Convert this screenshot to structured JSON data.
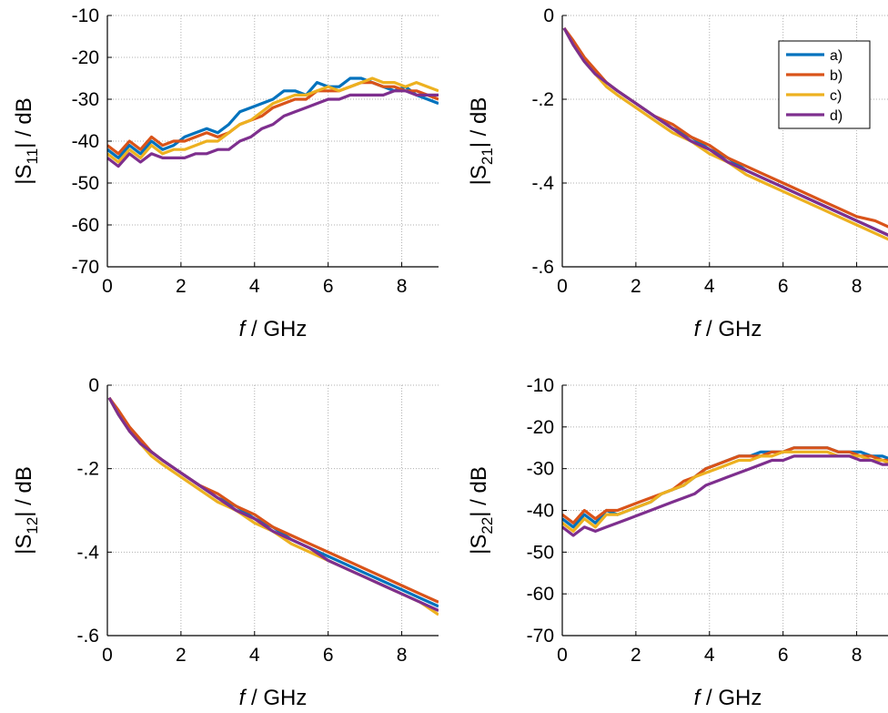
{
  "chart_data": [
    {
      "type": "line",
      "xlabel_var": "f",
      "xlabel_rest": " / GHz",
      "ylabel_pre": "|S",
      "ylabel_sub": "11",
      "ylabel_post": "| / dB",
      "xlim": [
        0,
        9
      ],
      "ylim": [
        -70,
        -10
      ],
      "xticks": [
        0,
        2,
        4,
        6,
        8
      ],
      "yticks": [
        -70,
        -60,
        -50,
        -40,
        -30,
        -20,
        -10
      ],
      "grid": true,
      "legend": null,
      "series": [
        {
          "color": "#0072BD",
          "x": [
            0,
            0.3,
            0.6,
            0.9,
            1.2,
            1.5,
            1.8,
            2.1,
            2.4,
            2.7,
            3.0,
            3.3,
            3.6,
            3.9,
            4.2,
            4.5,
            4.8,
            5.1,
            5.4,
            5.7,
            6.0,
            6.3,
            6.6,
            6.9,
            7.2,
            7.5,
            7.8,
            8.1,
            8.4,
            8.7,
            9.0
          ],
          "y": [
            -42,
            -44,
            -41,
            -43,
            -40,
            -42,
            -41,
            -39,
            -38,
            -37,
            -38,
            -36,
            -33,
            -32,
            -31,
            -30,
            -28,
            -28,
            -29,
            -26,
            -27,
            -27,
            -25,
            -25,
            -26,
            -27,
            -28,
            -27,
            -29,
            -30,
            -31
          ]
        },
        {
          "color": "#D95319",
          "x": [
            0,
            0.3,
            0.6,
            0.9,
            1.2,
            1.5,
            1.8,
            2.1,
            2.4,
            2.7,
            3.0,
            3.3,
            3.6,
            3.9,
            4.2,
            4.5,
            4.8,
            5.1,
            5.4,
            5.7,
            6.0,
            6.3,
            6.6,
            6.9,
            7.2,
            7.5,
            7.8,
            8.1,
            8.4,
            8.7,
            9.0
          ],
          "y": [
            -41,
            -43,
            -40,
            -42,
            -39,
            -41,
            -40,
            -40,
            -39,
            -38,
            -39,
            -38,
            -36,
            -35,
            -34,
            -32,
            -31,
            -30,
            -30,
            -28,
            -28,
            -28,
            -27,
            -26,
            -26,
            -27,
            -27,
            -28,
            -28,
            -29,
            -30
          ]
        },
        {
          "color": "#EDB120",
          "x": [
            0,
            0.3,
            0.6,
            0.9,
            1.2,
            1.5,
            1.8,
            2.1,
            2.4,
            2.7,
            3.0,
            3.3,
            3.6,
            3.9,
            4.2,
            4.5,
            4.8,
            5.1,
            5.4,
            5.7,
            6.0,
            6.3,
            6.6,
            6.9,
            7.2,
            7.5,
            7.8,
            8.1,
            8.4,
            8.7,
            9.0
          ],
          "y": [
            -43,
            -45,
            -42,
            -44,
            -41,
            -43,
            -42,
            -42,
            -41,
            -40,
            -40,
            -38,
            -36,
            -35,
            -33,
            -31,
            -30,
            -29,
            -29,
            -28,
            -27,
            -28,
            -27,
            -26,
            -25,
            -26,
            -26,
            -27,
            -26,
            -27,
            -28
          ]
        },
        {
          "color": "#7E2F8E",
          "x": [
            0,
            0.3,
            0.6,
            0.9,
            1.2,
            1.5,
            1.8,
            2.1,
            2.4,
            2.7,
            3.0,
            3.3,
            3.6,
            3.9,
            4.2,
            4.5,
            4.8,
            5.1,
            5.4,
            5.7,
            6.0,
            6.3,
            6.6,
            6.9,
            7.2,
            7.5,
            7.8,
            8.1,
            8.4,
            8.7,
            9.0
          ],
          "y": [
            -44,
            -46,
            -43,
            -45,
            -43,
            -44,
            -44,
            -44,
            -43,
            -43,
            -42,
            -42,
            -40,
            -39,
            -37,
            -36,
            -34,
            -33,
            -32,
            -31,
            -30,
            -30,
            -29,
            -29,
            -29,
            -29,
            -28,
            -28,
            -29,
            -29,
            -29
          ]
        }
      ]
    },
    {
      "type": "line",
      "xlabel_var": "f",
      "xlabel_rest": " / GHz",
      "ylabel_pre": "|S",
      "ylabel_sub": "21",
      "ylabel_post": "| / dB",
      "xlim": [
        0,
        9
      ],
      "ylim": [
        -0.6,
        0
      ],
      "xticks": [
        0,
        2,
        4,
        6,
        8
      ],
      "yticks": [
        -0.6,
        -0.4,
        -0.2,
        0
      ],
      "grid": true,
      "legend": {
        "position": "top-right",
        "entries": [
          "a)",
          "b)",
          "c)",
          "d)"
        ]
      },
      "series": [
        {
          "name": "a)",
          "color": "#0072BD",
          "x": [
            0.05,
            0.3,
            0.6,
            0.9,
            1.2,
            1.5,
            2.0,
            2.5,
            3.0,
            3.5,
            4.0,
            4.5,
            5.0,
            5.5,
            6.0,
            6.5,
            7.0,
            7.5,
            8.0,
            8.5,
            9.0
          ],
          "y": [
            -0.03,
            -0.07,
            -0.11,
            -0.14,
            -0.16,
            -0.18,
            -0.21,
            -0.24,
            -0.27,
            -0.29,
            -0.32,
            -0.34,
            -0.37,
            -0.39,
            -0.41,
            -0.43,
            -0.45,
            -0.47,
            -0.49,
            -0.51,
            -0.53
          ]
        },
        {
          "name": "b)",
          "color": "#D95319",
          "x": [
            0.05,
            0.3,
            0.6,
            0.9,
            1.2,
            1.5,
            2.0,
            2.5,
            3.0,
            3.5,
            4.0,
            4.5,
            5.0,
            5.5,
            6.0,
            6.5,
            7.0,
            7.5,
            8.0,
            8.5,
            9.0
          ],
          "y": [
            -0.03,
            -0.06,
            -0.1,
            -0.13,
            -0.16,
            -0.18,
            -0.21,
            -0.24,
            -0.26,
            -0.29,
            -0.31,
            -0.34,
            -0.36,
            -0.38,
            -0.4,
            -0.42,
            -0.44,
            -0.46,
            -0.48,
            -0.49,
            -0.51
          ]
        },
        {
          "name": "c)",
          "color": "#EDB120",
          "x": [
            0.05,
            0.3,
            0.6,
            0.9,
            1.2,
            1.5,
            2.0,
            2.5,
            3.0,
            3.5,
            4.0,
            4.5,
            5.0,
            5.5,
            6.0,
            6.5,
            7.0,
            7.5,
            8.0,
            8.5,
            9.0
          ],
          "y": [
            -0.03,
            -0.07,
            -0.11,
            -0.14,
            -0.17,
            -0.19,
            -0.22,
            -0.25,
            -0.28,
            -0.3,
            -0.33,
            -0.35,
            -0.38,
            -0.4,
            -0.42,
            -0.44,
            -0.46,
            -0.48,
            -0.5,
            -0.52,
            -0.54
          ]
        },
        {
          "name": "d)",
          "color": "#7E2F8E",
          "x": [
            0.05,
            0.3,
            0.6,
            0.9,
            1.2,
            1.5,
            2.0,
            2.5,
            3.0,
            3.5,
            4.0,
            4.5,
            5.0,
            5.5,
            6.0,
            6.5,
            7.0,
            7.5,
            8.0,
            8.5,
            9.0
          ],
          "y": [
            -0.03,
            -0.07,
            -0.11,
            -0.14,
            -0.16,
            -0.18,
            -0.21,
            -0.24,
            -0.27,
            -0.3,
            -0.32,
            -0.35,
            -0.37,
            -0.39,
            -0.41,
            -0.43,
            -0.45,
            -0.47,
            -0.49,
            -0.51,
            -0.53
          ]
        }
      ]
    },
    {
      "type": "line",
      "xlabel_var": "f",
      "xlabel_rest": " / GHz",
      "ylabel_pre": "|S",
      "ylabel_sub": "12",
      "ylabel_post": "| / dB",
      "xlim": [
        0,
        9
      ],
      "ylim": [
        -0.6,
        0
      ],
      "xticks": [
        0,
        2,
        4,
        6,
        8
      ],
      "yticks": [
        -0.6,
        -0.4,
        -0.2,
        0
      ],
      "grid": true,
      "legend": null,
      "series": [
        {
          "color": "#0072BD",
          "x": [
            0.05,
            0.3,
            0.6,
            0.9,
            1.2,
            1.5,
            2.0,
            2.5,
            3.0,
            3.5,
            4.0,
            4.5,
            5.0,
            5.5,
            6.0,
            6.5,
            7.0,
            7.5,
            8.0,
            8.5,
            9.0
          ],
          "y": [
            -0.03,
            -0.07,
            -0.11,
            -0.14,
            -0.16,
            -0.18,
            -0.21,
            -0.24,
            -0.27,
            -0.29,
            -0.32,
            -0.34,
            -0.37,
            -0.39,
            -0.41,
            -0.43,
            -0.45,
            -0.47,
            -0.49,
            -0.51,
            -0.53
          ]
        },
        {
          "color": "#D95319",
          "x": [
            0.05,
            0.3,
            0.6,
            0.9,
            1.2,
            1.5,
            2.0,
            2.5,
            3.0,
            3.5,
            4.0,
            4.5,
            5.0,
            5.5,
            6.0,
            6.5,
            7.0,
            7.5,
            8.0,
            8.5,
            9.0
          ],
          "y": [
            -0.03,
            -0.06,
            -0.1,
            -0.13,
            -0.16,
            -0.18,
            -0.21,
            -0.24,
            -0.26,
            -0.29,
            -0.31,
            -0.34,
            -0.36,
            -0.38,
            -0.4,
            -0.42,
            -0.44,
            -0.46,
            -0.48,
            -0.5,
            -0.52
          ]
        },
        {
          "color": "#EDB120",
          "x": [
            0.05,
            0.3,
            0.6,
            0.9,
            1.2,
            1.5,
            2.0,
            2.5,
            3.0,
            3.5,
            4.0,
            4.5,
            5.0,
            5.5,
            6.0,
            6.5,
            7.0,
            7.5,
            8.0,
            8.5,
            9.0
          ],
          "y": [
            -0.03,
            -0.07,
            -0.11,
            -0.14,
            -0.17,
            -0.19,
            -0.22,
            -0.25,
            -0.28,
            -0.3,
            -0.33,
            -0.35,
            -0.38,
            -0.4,
            -0.42,
            -0.44,
            -0.46,
            -0.48,
            -0.5,
            -0.52,
            -0.55
          ]
        },
        {
          "color": "#7E2F8E",
          "x": [
            0.05,
            0.3,
            0.6,
            0.9,
            1.2,
            1.5,
            2.0,
            2.5,
            3.0,
            3.5,
            4.0,
            4.5,
            5.0,
            5.5,
            6.0,
            6.5,
            7.0,
            7.5,
            8.0,
            8.5,
            9.0
          ],
          "y": [
            -0.03,
            -0.07,
            -0.11,
            -0.14,
            -0.16,
            -0.18,
            -0.21,
            -0.24,
            -0.27,
            -0.3,
            -0.32,
            -0.35,
            -0.37,
            -0.39,
            -0.42,
            -0.44,
            -0.46,
            -0.48,
            -0.5,
            -0.52,
            -0.54
          ]
        }
      ]
    },
    {
      "type": "line",
      "xlabel_var": "f",
      "xlabel_rest": " / GHz",
      "ylabel_pre": "|S",
      "ylabel_sub": "22",
      "ylabel_post": "| / dB",
      "xlim": [
        0,
        9
      ],
      "ylim": [
        -70,
        -10
      ],
      "xticks": [
        0,
        2,
        4,
        6,
        8
      ],
      "yticks": [
        -70,
        -60,
        -50,
        -40,
        -30,
        -20,
        -10
      ],
      "grid": true,
      "legend": null,
      "series": [
        {
          "color": "#0072BD",
          "x": [
            0,
            0.3,
            0.6,
            0.9,
            1.2,
            1.5,
            1.8,
            2.1,
            2.4,
            2.7,
            3.0,
            3.3,
            3.6,
            3.9,
            4.2,
            4.5,
            4.8,
            5.1,
            5.4,
            5.7,
            6.0,
            6.3,
            6.6,
            6.9,
            7.2,
            7.5,
            7.8,
            8.1,
            8.4,
            8.7,
            9.0
          ],
          "y": [
            -42,
            -44,
            -41,
            -43,
            -40,
            -41,
            -40,
            -39,
            -38,
            -36,
            -35,
            -34,
            -32,
            -30,
            -29,
            -28,
            -27,
            -27,
            -26,
            -26,
            -26,
            -25,
            -25,
            -25,
            -25,
            -26,
            -26,
            -26,
            -27,
            -27,
            -28
          ]
        },
        {
          "color": "#D95319",
          "x": [
            0,
            0.3,
            0.6,
            0.9,
            1.2,
            1.5,
            1.8,
            2.1,
            2.4,
            2.7,
            3.0,
            3.3,
            3.6,
            3.9,
            4.2,
            4.5,
            4.8,
            5.1,
            5.4,
            5.7,
            6.0,
            6.3,
            6.6,
            6.9,
            7.2,
            7.5,
            7.8,
            8.1,
            8.4,
            8.7,
            9.0
          ],
          "y": [
            -41,
            -43,
            -40,
            -42,
            -40,
            -40,
            -39,
            -38,
            -37,
            -36,
            -35,
            -33,
            -32,
            -30,
            -29,
            -28,
            -27,
            -27,
            -27,
            -26,
            -26,
            -25,
            -25,
            -25,
            -25,
            -26,
            -26,
            -27,
            -27,
            -28,
            -28
          ]
        },
        {
          "color": "#EDB120",
          "x": [
            0,
            0.3,
            0.6,
            0.9,
            1.2,
            1.5,
            1.8,
            2.1,
            2.4,
            2.7,
            3.0,
            3.3,
            3.6,
            3.9,
            4.2,
            4.5,
            4.8,
            5.1,
            5.4,
            5.7,
            6.0,
            6.3,
            6.6,
            6.9,
            7.2,
            7.5,
            7.8,
            8.1,
            8.4,
            8.7,
            9.0
          ],
          "y": [
            -43,
            -45,
            -42,
            -44,
            -41,
            -41,
            -40,
            -39,
            -38,
            -36,
            -35,
            -34,
            -32,
            -31,
            -30,
            -29,
            -28,
            -28,
            -27,
            -27,
            -26,
            -26,
            -26,
            -26,
            -26,
            -27,
            -27,
            -27,
            -28,
            -28,
            -29
          ]
        },
        {
          "color": "#7E2F8E",
          "x": [
            0,
            0.3,
            0.6,
            0.9,
            1.2,
            1.5,
            1.8,
            2.1,
            2.4,
            2.7,
            3.0,
            3.3,
            3.6,
            3.9,
            4.2,
            4.5,
            4.8,
            5.1,
            5.4,
            5.7,
            6.0,
            6.3,
            6.6,
            6.9,
            7.2,
            7.5,
            7.8,
            8.1,
            8.4,
            8.7,
            9.0
          ],
          "y": [
            -44,
            -46,
            -44,
            -45,
            -44,
            -43,
            -42,
            -41,
            -40,
            -39,
            -38,
            -37,
            -36,
            -34,
            -33,
            -32,
            -31,
            -30,
            -29,
            -28,
            -28,
            -27,
            -27,
            -27,
            -27,
            -27,
            -27,
            -28,
            -28,
            -29,
            -29
          ]
        }
      ]
    }
  ]
}
